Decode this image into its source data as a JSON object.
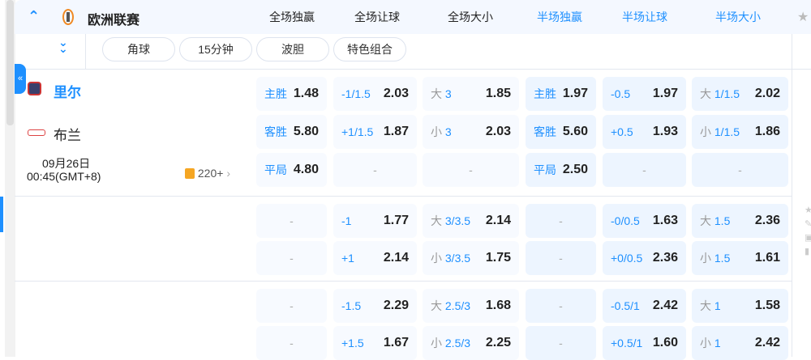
{
  "league": {
    "name": "欧洲联赛",
    "collapse_icon": "chevron-up-icon",
    "expand_icon": "double-chevron-down-icon"
  },
  "columns": [
    "全场独赢",
    "全场让球",
    "全场大小",
    "半场独赢",
    "半场让球",
    "半场大小"
  ],
  "filters": [
    "角球",
    "15分钟",
    "波胆",
    "特色组合"
  ],
  "match": {
    "home": "里尔",
    "away": "布兰",
    "date": "09月26日",
    "time": "00:45(GMT+8)",
    "more": "220+"
  },
  "rows": [
    [
      [
        "主胜",
        "1.48"
      ],
      [
        "-1/1.5",
        "2.03"
      ],
      [
        "大",
        "3",
        "1.85"
      ],
      [
        "主胜",
        "1.97"
      ],
      [
        "-0.5",
        "1.97"
      ],
      [
        "大",
        "1/1.5",
        "2.02"
      ]
    ],
    [
      [
        "客胜",
        "5.80"
      ],
      [
        "+1/1.5",
        "1.87"
      ],
      [
        "小",
        "3",
        "2.03"
      ],
      [
        "客胜",
        "5.60"
      ],
      [
        "+0.5",
        "1.93"
      ],
      [
        "小",
        "1/1.5",
        "1.86"
      ]
    ],
    [
      [
        "平局",
        "4.80"
      ],
      null,
      null,
      [
        "平局",
        "2.50"
      ],
      null,
      null
    ],
    [
      null,
      [
        "-1",
        "1.77"
      ],
      [
        "大",
        "3/3.5",
        "2.14"
      ],
      null,
      [
        "-0/0.5",
        "1.63"
      ],
      [
        "大",
        "1.5",
        "2.36"
      ]
    ],
    [
      null,
      [
        "+1",
        "2.14"
      ],
      [
        "小",
        "3/3.5",
        "1.75"
      ],
      null,
      [
        "+0/0.5",
        "2.36"
      ],
      [
        "小",
        "1.5",
        "1.61"
      ]
    ],
    [
      null,
      [
        "-1.5",
        "2.29"
      ],
      [
        "大",
        "2.5/3",
        "1.68"
      ],
      null,
      [
        "-0.5/1",
        "2.42"
      ],
      [
        "大",
        "1",
        "1.58"
      ]
    ],
    [
      null,
      [
        "+1.5",
        "1.67"
      ],
      [
        "小",
        "2.5/3",
        "2.25"
      ],
      null,
      [
        "+0.5/1",
        "1.60"
      ],
      [
        "小",
        "1",
        "2.42"
      ]
    ]
  ],
  "dash": "-",
  "colors": {
    "accent": "#1e90ff",
    "header_bg": "#f4f8ff",
    "cell_bg": "#f7faff",
    "half_cell_bg": "#edf5ff"
  }
}
